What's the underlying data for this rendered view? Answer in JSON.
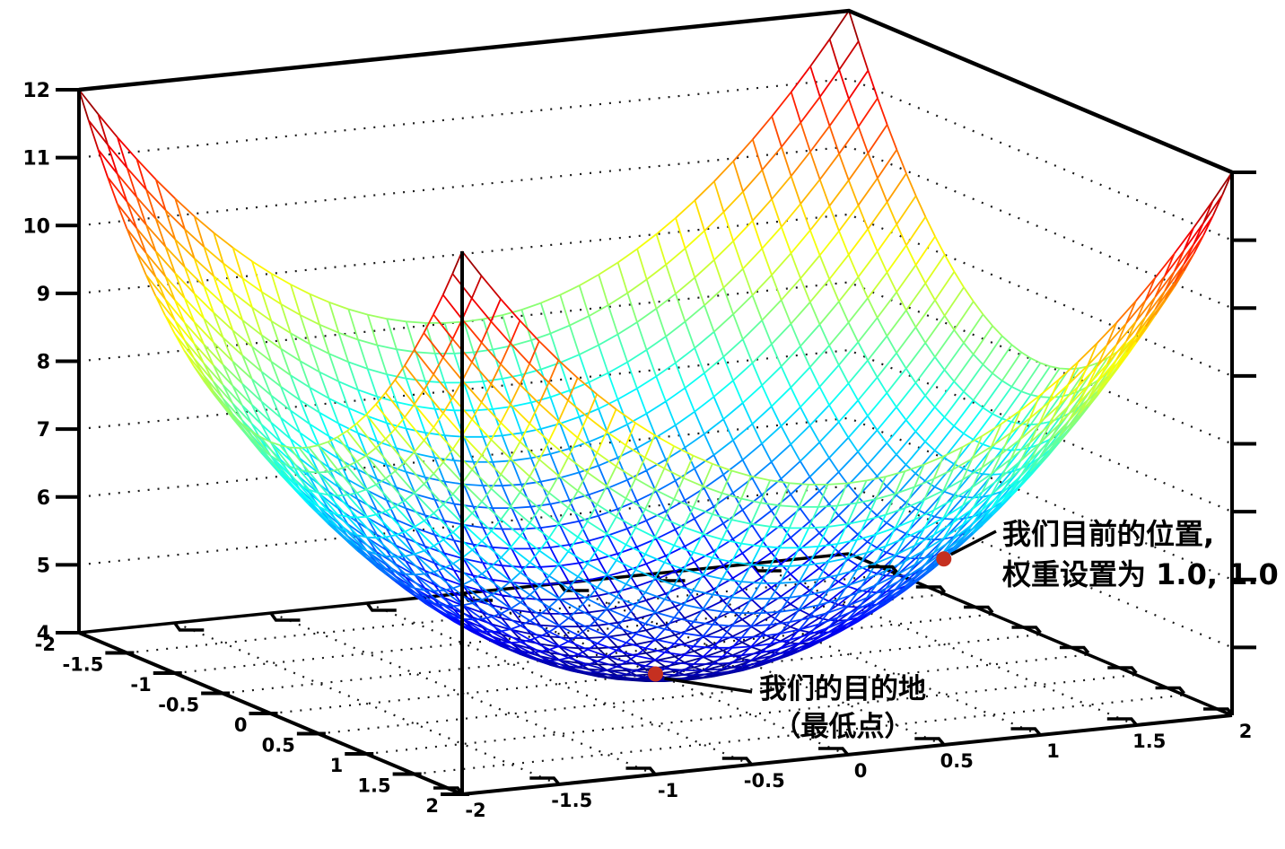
{
  "chart_data": {
    "type": "surface3d_wireframe",
    "title": "",
    "z_function": "z = 4 + x^2 + y^2",
    "x_range": [
      -2,
      2
    ],
    "y_range": [
      -2,
      2
    ],
    "z_range": [
      4,
      12
    ],
    "mesh_step": 0.1,
    "x_tick_labels": [
      "-2",
      "-1.5",
      "-1",
      "-0.5",
      "0",
      "0.5",
      "1",
      "1.5",
      "2"
    ],
    "y_tick_labels": [
      "-2",
      "-1.5",
      "-1",
      "-0.5",
      "0",
      "0.5",
      "1",
      "1.5",
      "2"
    ],
    "z_tick_labels": [
      "4",
      "5",
      "6",
      "7",
      "8",
      "9",
      "10",
      "11",
      "12"
    ],
    "colormap": "jet",
    "grid_style": "dotted",
    "legend": "none",
    "markers": [
      {
        "name": "current-position",
        "x": 1.0,
        "y": 1.0,
        "z": 6.0
      },
      {
        "name": "destination",
        "x": 0.0,
        "y": 0.0,
        "z": 4.0
      }
    ]
  },
  "annotations": {
    "current_position": {
      "line1": "我们目前的位置,",
      "line2": "权重设置为 1.0, 1.0"
    },
    "destination": {
      "line1": "我们的目的地",
      "line2": "（最低点）"
    }
  },
  "colors": {
    "marker": "#c53020",
    "axis": "#000000",
    "grid_dots": "#1a1a1a"
  }
}
